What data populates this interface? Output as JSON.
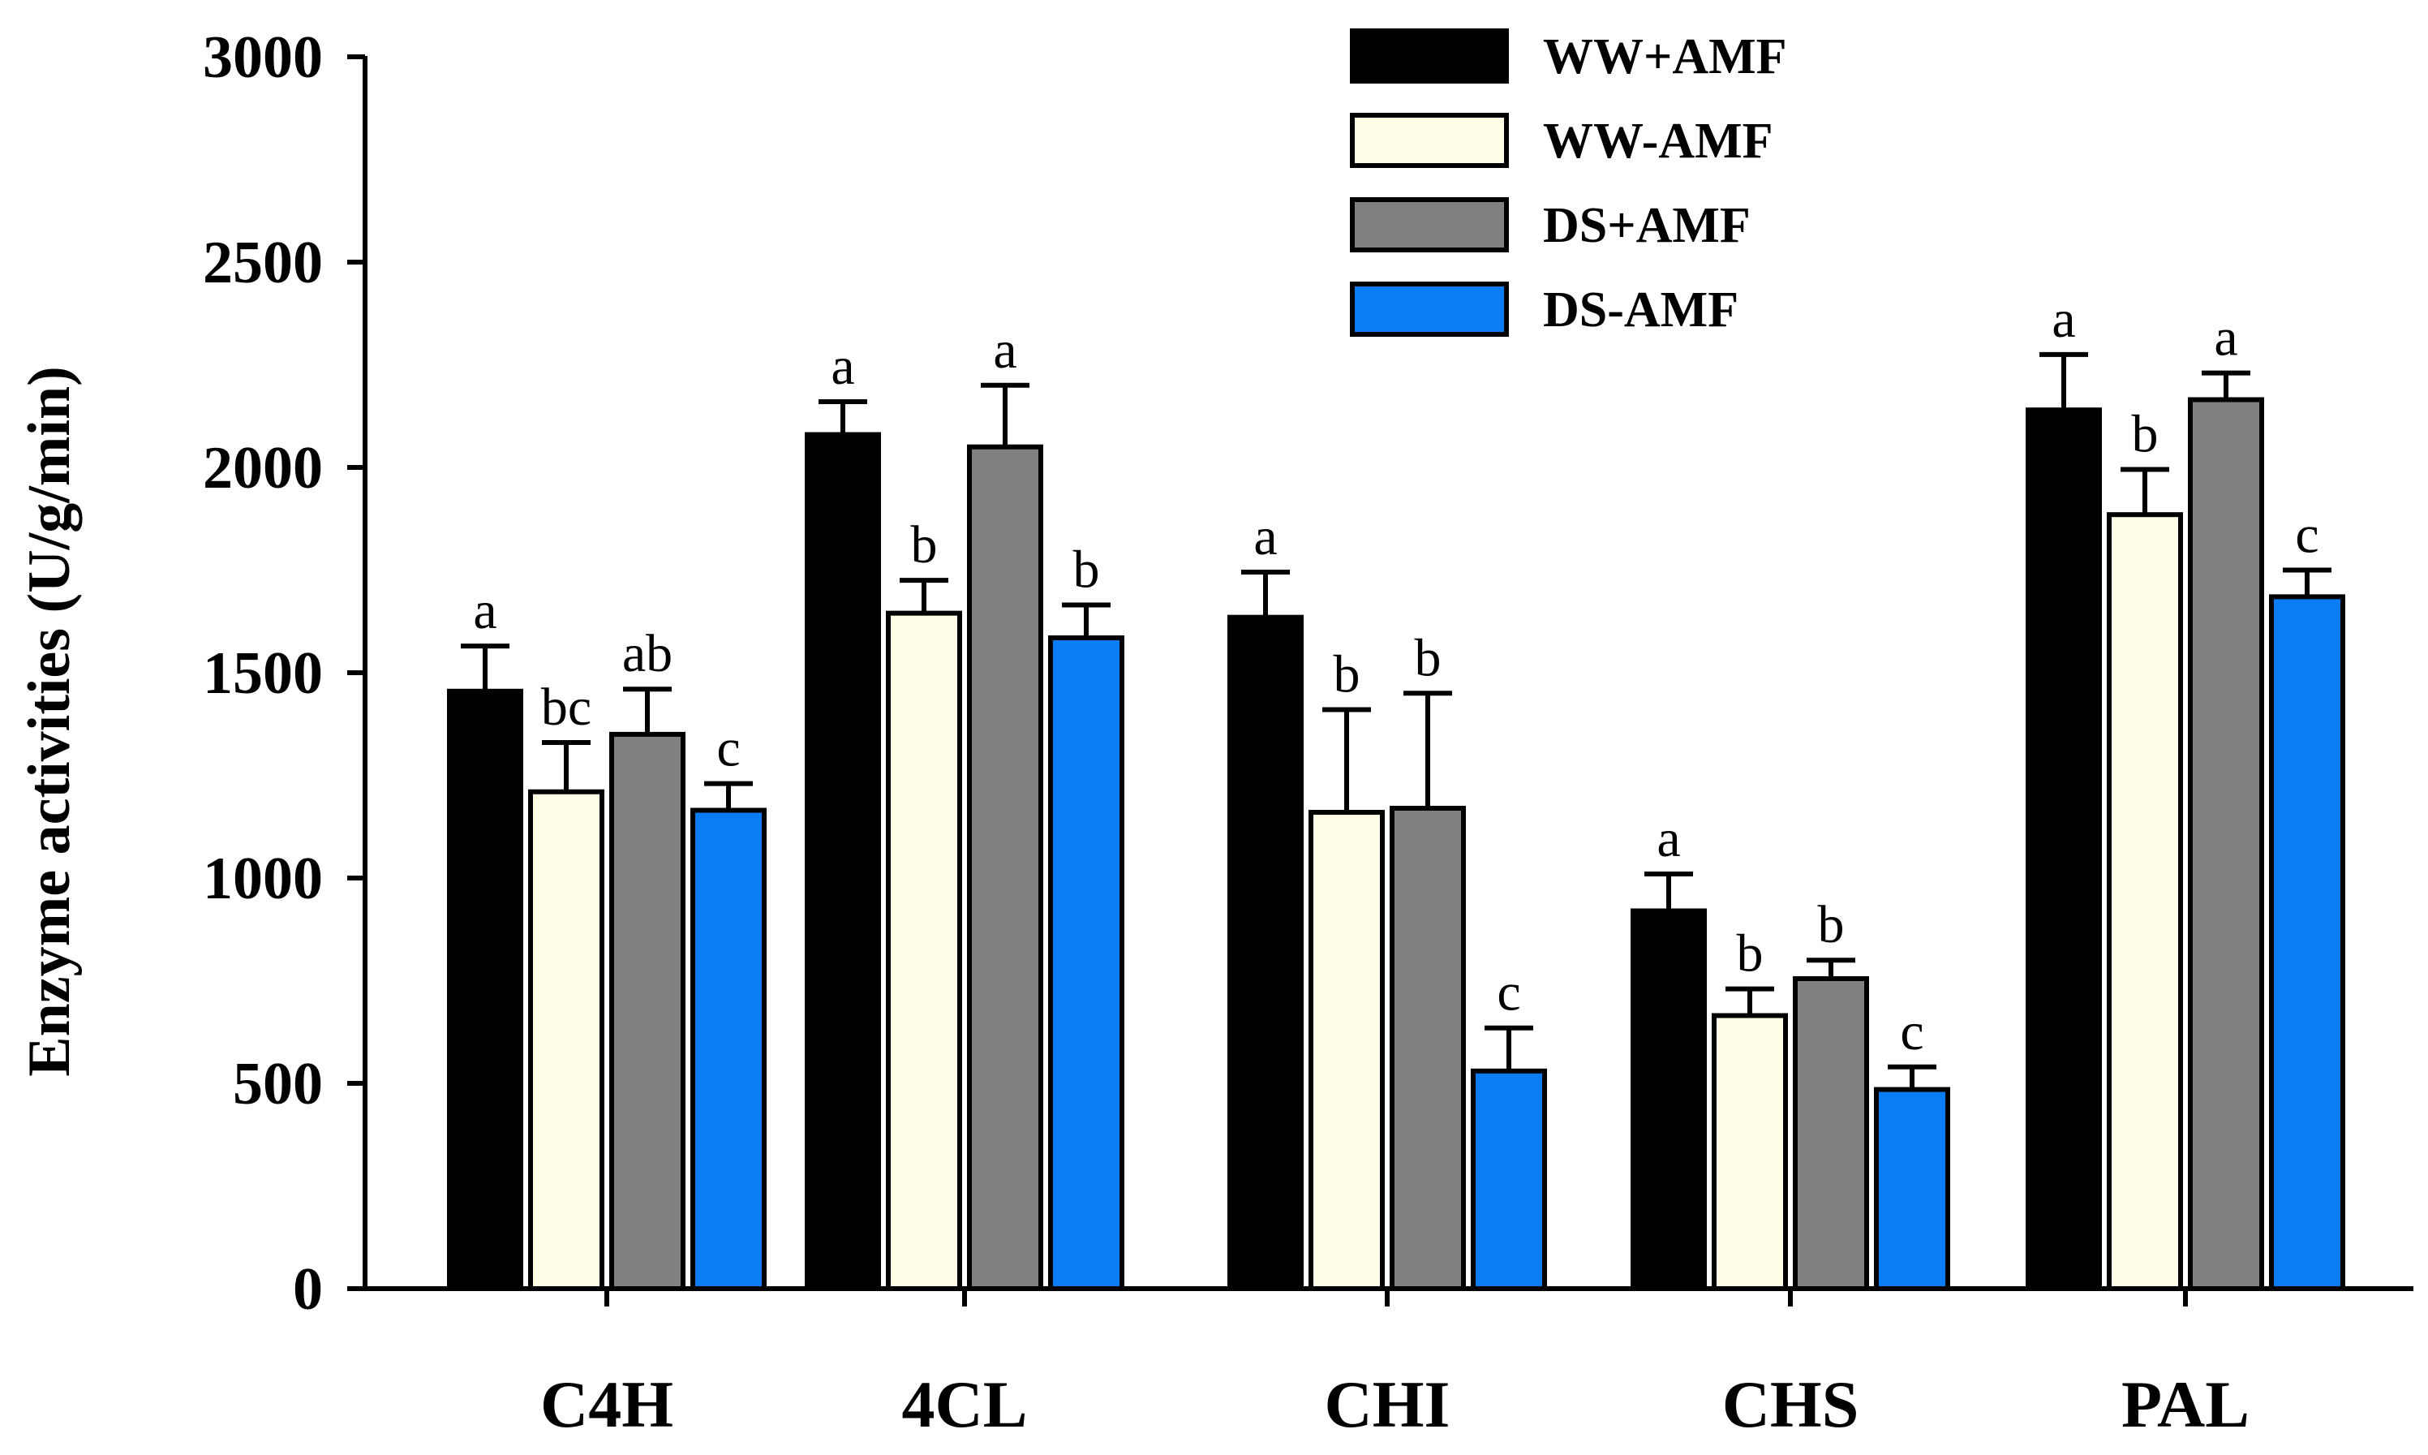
{
  "chart_data": {
    "type": "bar",
    "title": "",
    "xlabel": "",
    "ylabel": "Enzyme activities (U/g/min)",
    "ylim": [
      0,
      3000
    ],
    "yticks": [
      0,
      500,
      1000,
      1500,
      2000,
      2500,
      3000
    ],
    "ytick_labels": [
      "0",
      "500",
      "1000",
      "1500",
      "2000",
      "2500",
      "3000"
    ],
    "categories": [
      "C4H",
      "4CL",
      "CHI",
      "CHS",
      "PAL"
    ],
    "legend_position": "top-right",
    "series": [
      {
        "name": "WW+AMF",
        "color": "#000000",
        "values": [
          1455,
          2080,
          1635,
          920,
          2140
        ],
        "errors": [
          110,
          80,
          110,
          90,
          135
        ],
        "letters": [
          "a",
          "a",
          "a",
          "a",
          "a"
        ]
      },
      {
        "name": "WW-AMF",
        "color": "#FFFDE6",
        "values": [
          1210,
          1645,
          1160,
          665,
          1885
        ],
        "errors": [
          120,
          80,
          250,
          65,
          110
        ],
        "letters": [
          "bc",
          "b",
          "b",
          "b",
          "b"
        ]
      },
      {
        "name": "DS+AMF",
        "color": "#808080",
        "values": [
          1350,
          2050,
          1170,
          755,
          2165
        ],
        "errors": [
          110,
          150,
          280,
          45,
          65
        ],
        "letters": [
          "ab",
          "a",
          "b",
          "b",
          "a"
        ]
      },
      {
        "name": "DS-AMF",
        "color": "#0A7DF5",
        "values": [
          1165,
          1585,
          530,
          485,
          1685
        ],
        "errors": [
          65,
          80,
          105,
          55,
          65
        ],
        "letters": [
          "c",
          "b",
          "c",
          "c",
          "c"
        ]
      }
    ]
  }
}
